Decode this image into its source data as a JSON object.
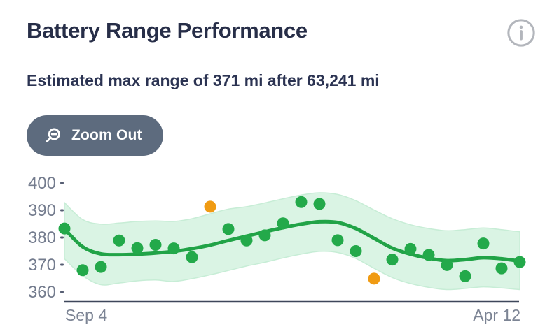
{
  "header": {
    "title": "Battery Range Performance"
  },
  "subtitle": "Estimated max range of 371 mi after 63,241 mi",
  "toolbar": {
    "zoom_out_label": "Zoom Out"
  },
  "colors": {
    "title": "#272e48",
    "subtitle": "#2b3352",
    "button_bg": "#5d6b7e",
    "button_text": "#ffffff",
    "info_icon": "#b3b6bc",
    "axis_label": "#7c8494",
    "tick_label": "#747c8e",
    "tick_dash": "#565e73",
    "axis_line": "#3e475b",
    "point_green": "#23a94a",
    "trend_green": "#21a347",
    "band_fill": "#daf4e4",
    "band_edge": "#c7edd6",
    "outlier_orange": "#f09b13"
  },
  "chart_data": {
    "type": "scatter",
    "title": "Battery Range Performance",
    "ylim": [
      356,
      402
    ],
    "y_ticks": [
      400,
      390,
      380,
      370,
      360
    ],
    "x_tick_labels": [
      "Sep 4",
      "Apr 12"
    ],
    "grid": false,
    "legend": "none",
    "points": {
      "values": [
        383.3,
        368.0,
        369.2,
        378.9,
        376.1,
        377.3,
        376.0,
        372.8,
        391.3,
        383.1,
        378.9,
        380.8,
        385.2,
        393.0,
        392.3,
        379.0,
        375.0,
        364.9,
        371.9,
        375.8,
        373.6,
        369.9,
        365.8,
        377.8,
        368.7,
        371.0
      ],
      "outlier_indices": [
        8,
        17
      ]
    },
    "trend": [
      383.2,
      376.6,
      374.0,
      373.7,
      373.9,
      374.3,
      374.9,
      375.9,
      377.2,
      378.9,
      380.5,
      382.1,
      383.6,
      384.9,
      385.8,
      385.5,
      383.3,
      379.7,
      376.1,
      373.9,
      372.4,
      371.5,
      371.9,
      372.6,
      372.2,
      371.3
    ],
    "band_upper": [
      392.8,
      386.6,
      384.9,
      385.3,
      385.9,
      386.1,
      385.9,
      386.9,
      388.7,
      390.4,
      391.3,
      392.7,
      394.2,
      395.6,
      396.4,
      395.8,
      393.5,
      390.1,
      386.9,
      384.7,
      383.3,
      382.5,
      382.9,
      383.5,
      382.9,
      382.1
    ],
    "band_lower": [
      372.2,
      366.0,
      362.7,
      363.3,
      364.1,
      364.4,
      363.9,
      364.9,
      366.3,
      367.9,
      369.5,
      370.9,
      372.5,
      373.9,
      374.9,
      374.5,
      372.3,
      368.7,
      365.3,
      363.1,
      361.7,
      360.9,
      361.3,
      361.9,
      361.5,
      360.9
    ]
  }
}
